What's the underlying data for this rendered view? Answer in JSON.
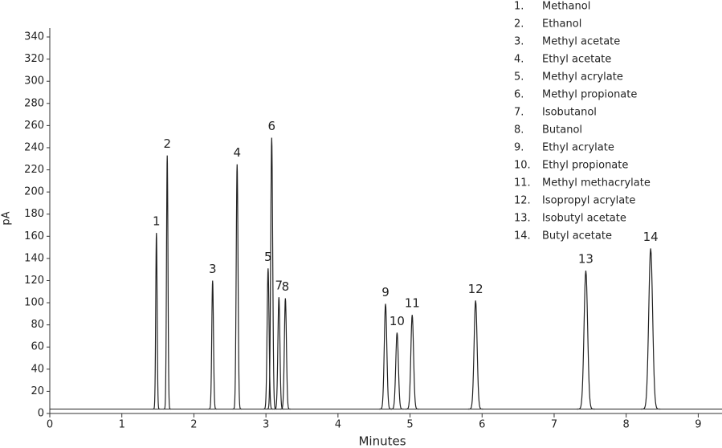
{
  "chart_data": {
    "type": "chromatogram",
    "x_label": "Minutes",
    "y_label": "pA",
    "xlim": [
      0,
      9.33
    ],
    "ylim": [
      0,
      348
    ],
    "xticks": [
      0,
      1,
      2,
      3,
      4,
      5,
      6,
      7,
      8,
      9
    ],
    "yticks": [
      0,
      20,
      40,
      60,
      80,
      100,
      120,
      140,
      160,
      180,
      200,
      220,
      240,
      260,
      280,
      300,
      320,
      340
    ],
    "baseline": 4,
    "color": "#222222",
    "peaks": [
      {
        "label": "1",
        "time": 1.48,
        "height": 163
      },
      {
        "label": "2",
        "time": 1.63,
        "height": 233
      },
      {
        "label": "3",
        "time": 2.26,
        "height": 120
      },
      {
        "label": "4",
        "time": 2.6,
        "height": 225
      },
      {
        "label": "5",
        "time": 3.03,
        "height": 131
      },
      {
        "label": "6",
        "time": 3.08,
        "height": 249
      },
      {
        "label": "7",
        "time": 3.18,
        "height": 105
      },
      {
        "label": "8",
        "time": 3.27,
        "height": 104
      },
      {
        "label": "9",
        "time": 4.66,
        "height": 99
      },
      {
        "label": "10",
        "time": 4.82,
        "height": 73
      },
      {
        "label": "11",
        "time": 5.03,
        "height": 89
      },
      {
        "label": "12",
        "time": 5.91,
        "height": 102
      },
      {
        "label": "13",
        "time": 7.44,
        "height": 129
      },
      {
        "label": "14",
        "time": 8.34,
        "height": 149
      }
    ],
    "legend": [
      {
        "number": "1.",
        "name": "Methanol"
      },
      {
        "number": "2.",
        "name": "Ethanol"
      },
      {
        "number": "3.",
        "name": "Methyl acetate"
      },
      {
        "number": "4.",
        "name": "Ethyl acetate"
      },
      {
        "number": "5.",
        "name": "Methyl acrylate"
      },
      {
        "number": "6.",
        "name": "Methyl propionate"
      },
      {
        "number": "7.",
        "name": "Isobutanol"
      },
      {
        "number": "8.",
        "name": "Butanol"
      },
      {
        "number": "9.",
        "name": "Ethyl acrylate"
      },
      {
        "number": "10.",
        "name": "Ethyl propionate"
      },
      {
        "number": "11.",
        "name": "Methyl methacrylate"
      },
      {
        "number": "12.",
        "name": "Isopropyl acrylate"
      },
      {
        "number": "13.",
        "name": "Isobutyl acetate"
      },
      {
        "number": "14.",
        "name": "Butyl acetate"
      }
    ]
  }
}
